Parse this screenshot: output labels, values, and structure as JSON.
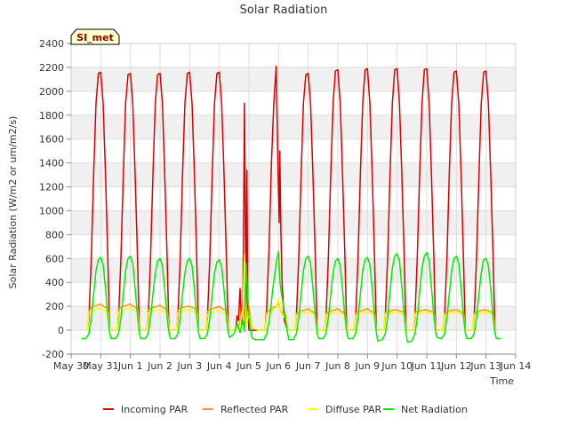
{
  "chart_data": {
    "type": "line",
    "title": "Solar Radiation",
    "xlabel": "Time",
    "ylabel": "Solar Radiation (W/m2 or um/m2/s)",
    "badge": "SI_met",
    "ylim": [
      -200,
      2400
    ],
    "yticks": [
      -200,
      0,
      200,
      400,
      600,
      800,
      1000,
      1200,
      1400,
      1600,
      1800,
      2000,
      2200,
      2400
    ],
    "xlim": [
      0,
      15
    ],
    "xticks": [
      {
        "x": 0,
        "label": "May 30"
      },
      {
        "x": 1,
        "label": "May 31"
      },
      {
        "x": 2,
        "label": "Jun 1"
      },
      {
        "x": 3,
        "label": "Jun 2"
      },
      {
        "x": 4,
        "label": "Jun 3"
      },
      {
        "x": 5,
        "label": "Jun 4"
      },
      {
        "x": 6,
        "label": "Jun 5"
      },
      {
        "x": 7,
        "label": "Jun 6"
      },
      {
        "x": 8,
        "label": "Jun 7"
      },
      {
        "x": 9,
        "label": "Jun 8"
      },
      {
        "x": 10,
        "label": "Jun 9"
      },
      {
        "x": 11,
        "label": "Jun 10"
      },
      {
        "x": 12,
        "label": "Jun 11"
      },
      {
        "x": 13,
        "label": "Jun 12"
      },
      {
        "x": 14,
        "label": "Jun 13"
      },
      {
        "x": 15,
        "label": "Jun 14"
      }
    ],
    "grid": true,
    "legend_position": "bottom",
    "series": [
      {
        "name": "Incoming PAR",
        "color": "#dd0000",
        "x": [
          0.55,
          0.6,
          0.68,
          0.76,
          0.84,
          0.92,
          1.0,
          1.08,
          1.16,
          1.24,
          1.3,
          1.55,
          1.6,
          1.68,
          1.76,
          1.84,
          1.92,
          2.0,
          2.08,
          2.16,
          2.24,
          2.3,
          2.55,
          2.6,
          2.68,
          2.76,
          2.84,
          2.92,
          3.0,
          3.08,
          3.16,
          3.24,
          3.3,
          3.55,
          3.6,
          3.68,
          3.76,
          3.84,
          3.92,
          4.0,
          4.08,
          4.16,
          4.24,
          4.3,
          4.55,
          4.6,
          4.68,
          4.76,
          4.84,
          4.92,
          5.0,
          5.08,
          5.16,
          5.24,
          5.3,
          5.55,
          5.6,
          5.65,
          5.7,
          5.75,
          5.8,
          5.85,
          5.9,
          5.93,
          5.96,
          6.0,
          6.04,
          6.08,
          6.12,
          6.2,
          6.3,
          6.55,
          6.6,
          6.68,
          6.76,
          6.84,
          6.92,
          6.97,
          7.02,
          7.04,
          7.08,
          7.12,
          7.16,
          7.2,
          7.3,
          7.55,
          7.6,
          7.68,
          7.76,
          7.84,
          7.92,
          8.0,
          8.08,
          8.16,
          8.24,
          8.3,
          8.55,
          8.6,
          8.68,
          8.76,
          8.84,
          8.92,
          9.0,
          9.08,
          9.16,
          9.24,
          9.3,
          9.55,
          9.6,
          9.68,
          9.76,
          9.84,
          9.92,
          10.0,
          10.08,
          10.16,
          10.24,
          10.3,
          10.55,
          10.6,
          10.68,
          10.76,
          10.84,
          10.92,
          11.0,
          11.08,
          11.16,
          11.24,
          11.3,
          11.55,
          11.6,
          11.68,
          11.76,
          11.84,
          11.92,
          12.0,
          12.08,
          12.16,
          12.24,
          12.3,
          12.55,
          12.6,
          12.68,
          12.76,
          12.84,
          12.92,
          13.0,
          13.08,
          13.16,
          13.24,
          13.3,
          13.55,
          13.6,
          13.68,
          13.76,
          13.84,
          13.92,
          14.0,
          14.08,
          14.16,
          14.24,
          14.3
        ],
        "y": [
          0,
          100,
          600,
          1300,
          1900,
          2150,
          2160,
          1900,
          1300,
          600,
          0,
          0,
          100,
          600,
          1300,
          1900,
          2140,
          2150,
          1900,
          1300,
          600,
          0,
          0,
          100,
          600,
          1300,
          1900,
          2140,
          2150,
          1900,
          1300,
          600,
          0,
          0,
          100,
          600,
          1300,
          1900,
          2150,
          2160,
          1900,
          1300,
          600,
          0,
          0,
          100,
          600,
          1300,
          1900,
          2150,
          2160,
          1900,
          1300,
          600,
          0,
          0,
          120,
          80,
          350,
          50,
          280,
          1900,
          100,
          1340,
          200,
          0,
          0,
          0,
          0,
          0,
          0,
          0,
          200,
          700,
          1400,
          1900,
          2210,
          1500,
          900,
          1500,
          800,
          400,
          200,
          80,
          0,
          0,
          100,
          600,
          1300,
          1900,
          2140,
          2150,
          1900,
          1300,
          600,
          0,
          0,
          100,
          600,
          1300,
          1900,
          2170,
          2180,
          1900,
          1300,
          600,
          0,
          0,
          100,
          600,
          1300,
          1900,
          2180,
          2190,
          1900,
          1300,
          600,
          0,
          0,
          100,
          600,
          1300,
          1900,
          2180,
          2190,
          1900,
          1300,
          600,
          0,
          0,
          100,
          600,
          1300,
          1900,
          2180,
          2190,
          1900,
          1300,
          600,
          0,
          0,
          100,
          600,
          1300,
          1900,
          2160,
          2170,
          1900,
          1300,
          600,
          0,
          0,
          100,
          600,
          1300,
          1900,
          2160,
          2170,
          1900,
          1300,
          600,
          0
        ]
      },
      {
        "name": "Reflected PAR",
        "color": "#ff9900",
        "x": [
          0.55,
          0.6,
          0.75,
          0.9,
          1.0,
          1.1,
          1.25,
          1.3,
          1.55,
          1.6,
          1.75,
          1.9,
          2.0,
          2.1,
          2.25,
          2.3,
          2.55,
          2.6,
          2.75,
          2.9,
          3.0,
          3.1,
          3.25,
          3.3,
          3.55,
          3.6,
          3.75,
          3.9,
          4.0,
          4.1,
          4.25,
          4.3,
          4.55,
          4.6,
          4.75,
          4.9,
          5.0,
          5.1,
          5.25,
          5.3,
          5.55,
          5.7,
          5.8,
          5.9,
          6.0,
          6.1,
          6.3,
          6.55,
          6.6,
          6.75,
          6.9,
          7.0,
          7.1,
          7.25,
          7.3,
          7.55,
          7.6,
          7.75,
          7.9,
          8.0,
          8.1,
          8.25,
          8.3,
          8.55,
          8.6,
          8.75,
          8.9,
          9.0,
          9.1,
          9.25,
          9.3,
          9.55,
          9.6,
          9.75,
          9.9,
          10.0,
          10.1,
          10.25,
          10.3,
          10.55,
          10.6,
          10.75,
          10.9,
          11.0,
          11.1,
          11.25,
          11.3,
          11.55,
          11.6,
          11.75,
          11.9,
          12.0,
          12.1,
          12.25,
          12.3,
          12.55,
          12.6,
          12.75,
          12.9,
          13.0,
          13.1,
          13.25,
          13.3,
          13.55,
          13.6,
          13.75,
          13.9,
          14.0,
          14.1,
          14.25,
          14.3
        ],
        "y": [
          0,
          170,
          200,
          210,
          220,
          200,
          180,
          0,
          0,
          180,
          200,
          210,
          220,
          200,
          180,
          0,
          0,
          170,
          190,
          200,
          210,
          190,
          170,
          0,
          0,
          170,
          190,
          200,
          200,
          190,
          170,
          0,
          0,
          160,
          180,
          190,
          200,
          180,
          160,
          0,
          0,
          60,
          200,
          40,
          200,
          20,
          0,
          0,
          150,
          180,
          200,
          220,
          150,
          120,
          0,
          0,
          140,
          160,
          170,
          180,
          160,
          140,
          0,
          0,
          140,
          160,
          170,
          180,
          160,
          140,
          0,
          0,
          140,
          160,
          170,
          180,
          160,
          140,
          0,
          0,
          150,
          160,
          170,
          170,
          160,
          150,
          0,
          0,
          150,
          160,
          170,
          170,
          160,
          150,
          0,
          0,
          140,
          160,
          170,
          170,
          160,
          140,
          0,
          0,
          140,
          160,
          170,
          170,
          160,
          140,
          0
        ]
      },
      {
        "name": "Diffuse PAR",
        "color": "#ffff00",
        "x": [
          0.55,
          0.6,
          0.75,
          0.9,
          1.0,
          1.1,
          1.25,
          1.3,
          1.55,
          1.6,
          1.75,
          1.9,
          2.0,
          2.1,
          2.25,
          2.3,
          2.55,
          2.6,
          2.75,
          2.9,
          3.0,
          3.1,
          3.25,
          3.3,
          3.55,
          3.6,
          3.75,
          3.9,
          4.0,
          4.1,
          4.25,
          4.3,
          4.55,
          4.6,
          4.75,
          4.9,
          5.0,
          5.1,
          5.25,
          5.3,
          5.55,
          5.7,
          5.8,
          5.85,
          5.9,
          6.0,
          6.1,
          6.3,
          6.55,
          6.6,
          6.75,
          6.9,
          7.0,
          7.1,
          7.25,
          7.3,
          7.55,
          7.6,
          7.75,
          7.9,
          8.0,
          8.1,
          8.25,
          8.3,
          8.55,
          8.6,
          8.75,
          8.9,
          9.0,
          9.1,
          9.25,
          9.3,
          9.55,
          9.6,
          9.75,
          9.9,
          10.0,
          10.1,
          10.25,
          10.3,
          10.55,
          10.6,
          10.75,
          10.9,
          11.0,
          11.1,
          11.25,
          11.3,
          11.55,
          11.6,
          11.75,
          11.9,
          12.0,
          12.1,
          12.25,
          12.3,
          12.55,
          12.6,
          12.75,
          12.9,
          13.0,
          13.1,
          13.25,
          13.3,
          13.55,
          13.6,
          13.75,
          13.9,
          14.0,
          14.1,
          14.25,
          14.3
        ],
        "y": [
          0,
          150,
          170,
          180,
          180,
          170,
          150,
          0,
          0,
          150,
          170,
          180,
          180,
          170,
          150,
          0,
          0,
          140,
          160,
          170,
          170,
          160,
          140,
          0,
          0,
          140,
          160,
          170,
          170,
          160,
          140,
          0,
          0,
          130,
          150,
          160,
          160,
          150,
          130,
          0,
          0,
          40,
          180,
          640,
          30,
          150,
          20,
          0,
          0,
          130,
          160,
          180,
          260,
          130,
          100,
          0,
          0,
          120,
          140,
          150,
          150,
          140,
          120,
          0,
          0,
          120,
          140,
          150,
          150,
          140,
          120,
          0,
          0,
          120,
          140,
          150,
          150,
          140,
          120,
          0,
          0,
          130,
          140,
          150,
          150,
          140,
          130,
          0,
          0,
          130,
          140,
          150,
          150,
          140,
          130,
          0,
          0,
          120,
          140,
          150,
          150,
          140,
          120,
          0,
          0,
          120,
          140,
          150,
          150,
          140,
          120,
          0
        ]
      },
      {
        "name": "Net Radiation",
        "color": "#00ee00",
        "x": [
          0.35,
          0.5,
          0.6,
          0.68,
          0.76,
          0.84,
          0.92,
          1.0,
          1.08,
          1.16,
          1.24,
          1.3,
          1.35,
          1.5,
          1.6,
          1.68,
          1.76,
          1.84,
          1.92,
          2.0,
          2.08,
          2.16,
          2.24,
          2.3,
          2.35,
          2.5,
          2.6,
          2.68,
          2.76,
          2.84,
          2.92,
          3.0,
          3.08,
          3.16,
          3.24,
          3.3,
          3.35,
          3.5,
          3.6,
          3.68,
          3.76,
          3.84,
          3.92,
          4.0,
          4.08,
          4.16,
          4.24,
          4.3,
          4.35,
          4.5,
          4.6,
          4.68,
          4.76,
          4.84,
          4.92,
          5.0,
          5.08,
          5.16,
          5.24,
          5.3,
          5.35,
          5.5,
          5.6,
          5.7,
          5.8,
          5.85,
          5.9,
          5.95,
          6.0,
          6.1,
          6.2,
          6.3,
          6.35,
          6.5,
          6.6,
          6.7,
          6.8,
          6.92,
          7.0,
          7.05,
          7.1,
          7.2,
          7.3,
          7.35,
          7.5,
          7.6,
          7.68,
          7.76,
          7.84,
          7.92,
          8.0,
          8.08,
          8.16,
          8.24,
          8.3,
          8.35,
          8.5,
          8.6,
          8.68,
          8.76,
          8.84,
          8.92,
          9.0,
          9.08,
          9.16,
          9.24,
          9.3,
          9.35,
          9.5,
          9.6,
          9.68,
          9.76,
          9.84,
          9.92,
          10.0,
          10.08,
          10.16,
          10.24,
          10.3,
          10.35,
          10.5,
          10.6,
          10.68,
          10.76,
          10.84,
          10.92,
          11.0,
          11.08,
          11.16,
          11.24,
          11.3,
          11.35,
          11.5,
          11.6,
          11.68,
          11.76,
          11.84,
          11.92,
          12.0,
          12.08,
          12.16,
          12.24,
          12.3,
          12.35,
          12.5,
          12.6,
          12.68,
          12.76,
          12.84,
          12.92,
          13.0,
          13.08,
          13.16,
          13.24,
          13.3,
          13.35,
          13.5,
          13.6,
          13.68,
          13.76,
          13.84,
          13.92,
          14.0,
          14.08,
          14.16,
          14.24,
          14.3,
          14.35,
          14.5
        ],
        "y": [
          -70,
          -70,
          -30,
          100,
          300,
          500,
          590,
          610,
          550,
          350,
          120,
          -20,
          -70,
          -70,
          -30,
          100,
          300,
          500,
          600,
          620,
          560,
          350,
          120,
          -20,
          -70,
          -70,
          -30,
          100,
          300,
          480,
          580,
          600,
          540,
          340,
          110,
          -20,
          -70,
          -70,
          -30,
          100,
          300,
          480,
          580,
          600,
          540,
          340,
          110,
          -20,
          -70,
          -70,
          -30,
          100,
          300,
          480,
          570,
          590,
          530,
          330,
          100,
          -20,
          -60,
          -30,
          60,
          -20,
          80,
          -10,
          560,
          330,
          120,
          -60,
          -80,
          -80,
          -80,
          -80,
          -30,
          100,
          340,
          560,
          660,
          400,
          300,
          150,
          -20,
          -80,
          -80,
          -30,
          100,
          300,
          500,
          600,
          620,
          560,
          350,
          120,
          -20,
          -70,
          -70,
          -30,
          100,
          300,
          480,
          580,
          600,
          540,
          340,
          110,
          -20,
          -70,
          -70,
          -30,
          100,
          300,
          500,
          590,
          610,
          550,
          350,
          120,
          -20,
          -90,
          -80,
          -30,
          100,
          320,
          520,
          620,
          640,
          580,
          360,
          120,
          -20,
          -100,
          -90,
          -30,
          100,
          320,
          520,
          620,
          650,
          580,
          360,
          120,
          -20,
          -60,
          -70,
          -30,
          100,
          300,
          500,
          600,
          620,
          560,
          350,
          120,
          -20,
          -70,
          -70,
          -30,
          100,
          300,
          480,
          590,
          600,
          540,
          340,
          110,
          -20,
          -70,
          -70
        ]
      }
    ]
  }
}
